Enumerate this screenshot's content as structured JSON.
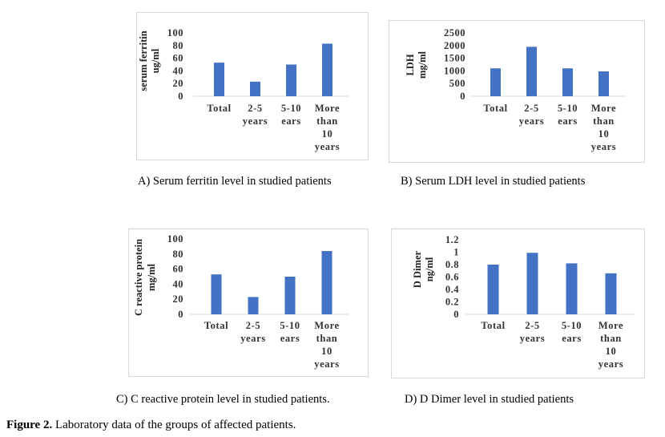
{
  "figure": {
    "label": "Figure 2.",
    "text": " Laboratory data of the groups of affected patients."
  },
  "chart_data": [
    {
      "type": "bar",
      "caption": "A)  Serum ferritin level in studied patients",
      "ylabel": [
        "serum ferritin",
        "ug/ml"
      ],
      "categories": [
        [
          "Total"
        ],
        [
          "2-5",
          "years"
        ],
        [
          "5-10",
          "ears"
        ],
        [
          "More",
          "than",
          "10",
          "years"
        ]
      ],
      "values": [
        53,
        23,
        50,
        83
      ],
      "yticks": [
        "100",
        "80",
        "60",
        "40",
        "20",
        "0"
      ],
      "ylim": [
        0,
        100
      ],
      "color": "#4472c4"
    },
    {
      "type": "bar",
      "caption": "B)   Serum LDH level in studied patients",
      "ylabel": [
        "LDH",
        "mg/ml"
      ],
      "categories": [
        [
          "Total"
        ],
        [
          "2-5",
          "years"
        ],
        [
          "5-10",
          "ears"
        ],
        [
          "More",
          "than",
          "10",
          "years"
        ]
      ],
      "values": [
        1100,
        1950,
        1100,
        980
      ],
      "yticks": [
        "2500",
        "2000",
        "1500",
        "1000",
        "500",
        "0"
      ],
      "ylim": [
        0,
        2500
      ],
      "color": "#4472c4"
    },
    {
      "type": "bar",
      "caption": "C) C reactive protein level in studied patients.",
      "ylabel": [
        "C reactive protein",
        "mg/ml"
      ],
      "categories": [
        [
          "Total"
        ],
        [
          "2-5",
          "years"
        ],
        [
          "5-10",
          "ears"
        ],
        [
          "More",
          "than",
          "10",
          "years"
        ]
      ],
      "values": [
        53,
        23,
        50,
        84
      ],
      "yticks": [
        "100",
        "80",
        "60",
        "40",
        "20",
        "0"
      ],
      "ylim": [
        0,
        100
      ],
      "color": "#4472c4"
    },
    {
      "type": "bar",
      "caption": "D) D Dimer level in studied patients",
      "ylabel": [
        "D Dimer",
        "ng/ml"
      ],
      "categories": [
        [
          "Total"
        ],
        [
          "2-5",
          "years"
        ],
        [
          "5-10",
          "ears"
        ],
        [
          "More",
          "than",
          "10",
          "years"
        ]
      ],
      "values": [
        0.8,
        0.99,
        0.82,
        0.66
      ],
      "yticks": [
        "1.2",
        "1",
        "0.8",
        "0.6",
        "0.4",
        "0.2",
        "0"
      ],
      "ylim": [
        0,
        1.2
      ],
      "color": "#4472c4"
    }
  ]
}
